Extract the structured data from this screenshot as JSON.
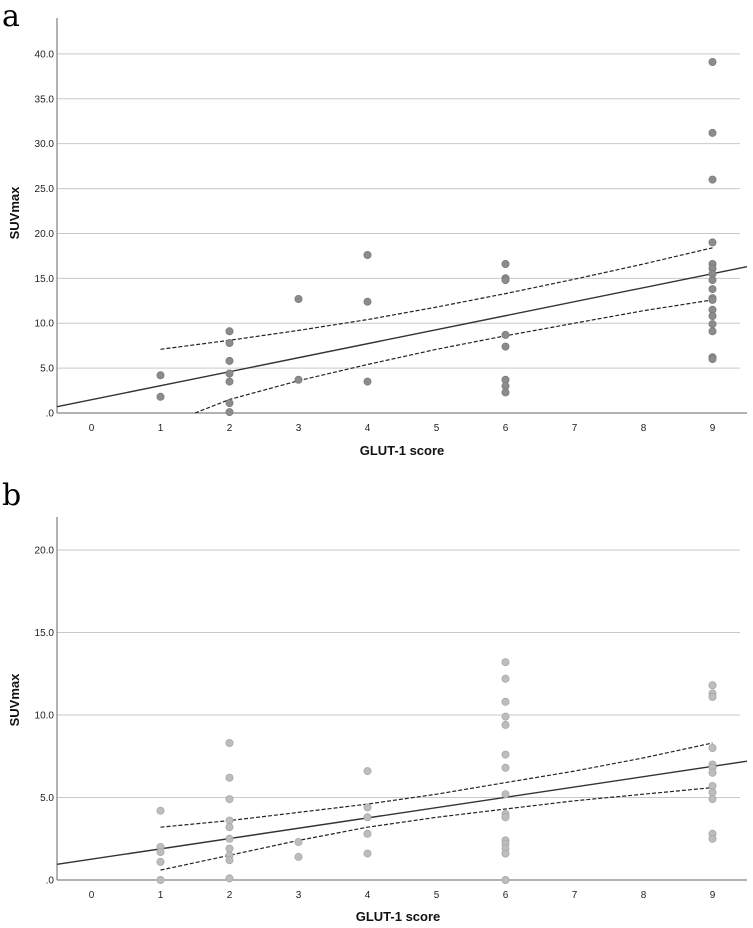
{
  "chart_data": [
    {
      "type": "scatter",
      "panel_label": "a",
      "xlabel": "GLUT-1 score",
      "ylabel": "SUVmax",
      "categories": [
        "0",
        "1",
        "2",
        "3",
        "4",
        "5",
        "6",
        "7",
        "8",
        "9"
      ],
      "xlim": [
        -0.5,
        9.5
      ],
      "ylim": [
        0,
        44
      ],
      "yticks": [
        0,
        5,
        10,
        15,
        20,
        25,
        30,
        35,
        40
      ],
      "ytick_labels": [
        ".0",
        "5.0",
        "10.0",
        "15.0",
        "20.0",
        "25.0",
        "30.0",
        "35.0",
        "40.0"
      ],
      "point_color": "#8c8c8c",
      "point_stroke": "#7a7a7a",
      "points": [
        {
          "x": 1,
          "y": 4.2
        },
        {
          "x": 1,
          "y": 1.8
        },
        {
          "x": 2,
          "y": 9.1
        },
        {
          "x": 2,
          "y": 7.8
        },
        {
          "x": 2,
          "y": 5.8
        },
        {
          "x": 2,
          "y": 4.4
        },
        {
          "x": 2,
          "y": 3.5
        },
        {
          "x": 2,
          "y": 1.1
        },
        {
          "x": 2,
          "y": 0.1
        },
        {
          "x": 3,
          "y": 12.7
        },
        {
          "x": 3,
          "y": 3.7
        },
        {
          "x": 4,
          "y": 17.6
        },
        {
          "x": 4,
          "y": 12.4
        },
        {
          "x": 4,
          "y": 3.5
        },
        {
          "x": 6,
          "y": 16.6
        },
        {
          "x": 6,
          "y": 15.0
        },
        {
          "x": 6,
          "y": 14.8
        },
        {
          "x": 6,
          "y": 8.7
        },
        {
          "x": 6,
          "y": 7.4
        },
        {
          "x": 6,
          "y": 3.7
        },
        {
          "x": 6,
          "y": 3.0
        },
        {
          "x": 6,
          "y": 2.3
        },
        {
          "x": 9,
          "y": 39.1
        },
        {
          "x": 9,
          "y": 31.2
        },
        {
          "x": 9,
          "y": 26.0
        },
        {
          "x": 9,
          "y": 19.0
        },
        {
          "x": 9,
          "y": 16.6
        },
        {
          "x": 9,
          "y": 16.1
        },
        {
          "x": 9,
          "y": 15.5
        },
        {
          "x": 9,
          "y": 14.8
        },
        {
          "x": 9,
          "y": 13.8
        },
        {
          "x": 9,
          "y": 12.8
        },
        {
          "x": 9,
          "y": 12.6
        },
        {
          "x": 9,
          "y": 11.5
        },
        {
          "x": 9,
          "y": 10.8
        },
        {
          "x": 9,
          "y": 9.9
        },
        {
          "x": 9,
          "y": 9.1
        },
        {
          "x": 9,
          "y": 6.2
        },
        {
          "x": 9,
          "y": 6.0
        }
      ],
      "fit_line": {
        "x": [
          -0.5,
          9.5
        ],
        "y": [
          0.7,
          16.3
        ]
      },
      "ci_upper": {
        "x": [
          1,
          2,
          3,
          4,
          5,
          6,
          7,
          8,
          9
        ],
        "y": [
          7.1,
          8.1,
          9.2,
          10.4,
          11.8,
          13.3,
          14.9,
          16.6,
          18.4
        ]
      },
      "ci_lower": {
        "x": [
          1.5,
          2,
          3,
          4,
          5,
          6,
          7,
          8,
          9
        ],
        "y": [
          0.0,
          1.5,
          3.6,
          5.4,
          7.1,
          8.6,
          10.0,
          11.4,
          12.6
        ]
      }
    },
    {
      "type": "scatter",
      "panel_label": "b",
      "xlabel": "GLUT-1 score",
      "ylabel": "SUVmax",
      "categories": [
        "0",
        "1",
        "2",
        "3",
        "4",
        "5",
        "6",
        "7",
        "8",
        "9"
      ],
      "xlim": [
        -0.5,
        9.5
      ],
      "ylim": [
        0,
        22
      ],
      "yticks": [
        0,
        5,
        10,
        15,
        20
      ],
      "ytick_labels": [
        ".0",
        "5.0",
        "10.0",
        "15.0",
        "20.0"
      ],
      "point_color": "#bdbdbd",
      "point_stroke": "#a8a8a8",
      "points": [
        {
          "x": 1,
          "y": 4.2
        },
        {
          "x": 1,
          "y": 2.0
        },
        {
          "x": 1,
          "y": 1.7
        },
        {
          "x": 1,
          "y": 1.1
        },
        {
          "x": 1,
          "y": 0.0
        },
        {
          "x": 2,
          "y": 8.3
        },
        {
          "x": 2,
          "y": 6.2
        },
        {
          "x": 2,
          "y": 4.9
        },
        {
          "x": 2,
          "y": 3.6
        },
        {
          "x": 2,
          "y": 3.2
        },
        {
          "x": 2,
          "y": 2.5
        },
        {
          "x": 2,
          "y": 1.9
        },
        {
          "x": 2,
          "y": 1.5
        },
        {
          "x": 2,
          "y": 1.2
        },
        {
          "x": 2,
          "y": 0.1
        },
        {
          "x": 3,
          "y": 2.3
        },
        {
          "x": 3,
          "y": 1.4
        },
        {
          "x": 4,
          "y": 6.6
        },
        {
          "x": 4,
          "y": 4.4
        },
        {
          "x": 4,
          "y": 3.8
        },
        {
          "x": 4,
          "y": 2.8
        },
        {
          "x": 4,
          "y": 1.6
        },
        {
          "x": 6,
          "y": 13.2
        },
        {
          "x": 6,
          "y": 12.2
        },
        {
          "x": 6,
          "y": 10.8
        },
        {
          "x": 6,
          "y": 9.9
        },
        {
          "x": 6,
          "y": 9.4
        },
        {
          "x": 6,
          "y": 7.6
        },
        {
          "x": 6,
          "y": 6.8
        },
        {
          "x": 6,
          "y": 5.2
        },
        {
          "x": 6,
          "y": 4.0
        },
        {
          "x": 6,
          "y": 3.8
        },
        {
          "x": 6,
          "y": 2.4
        },
        {
          "x": 6,
          "y": 2.2
        },
        {
          "x": 6,
          "y": 1.9
        },
        {
          "x": 6,
          "y": 1.6
        },
        {
          "x": 6,
          "y": 0.0
        },
        {
          "x": 9,
          "y": 11.8
        },
        {
          "x": 9,
          "y": 11.3
        },
        {
          "x": 9,
          "y": 11.1
        },
        {
          "x": 9,
          "y": 8.0
        },
        {
          "x": 9,
          "y": 7.0
        },
        {
          "x": 9,
          "y": 6.8
        },
        {
          "x": 9,
          "y": 6.5
        },
        {
          "x": 9,
          "y": 5.7
        },
        {
          "x": 9,
          "y": 5.3
        },
        {
          "x": 9,
          "y": 4.9
        },
        {
          "x": 9,
          "y": 2.8
        },
        {
          "x": 9,
          "y": 2.5
        }
      ],
      "fit_line": {
        "x": [
          -0.5,
          9.5
        ],
        "y": [
          0.95,
          7.2
        ]
      },
      "ci_upper": {
        "x": [
          1,
          2,
          3,
          4,
          5,
          6,
          7,
          8,
          9
        ],
        "y": [
          3.2,
          3.6,
          4.1,
          4.6,
          5.2,
          5.9,
          6.6,
          7.4,
          8.3
        ]
      },
      "ci_lower": {
        "x": [
          1,
          2,
          3,
          4,
          5,
          6,
          7,
          8,
          9
        ],
        "y": [
          0.6,
          1.5,
          2.4,
          3.2,
          3.8,
          4.3,
          4.8,
          5.2,
          5.6
        ]
      }
    }
  ]
}
